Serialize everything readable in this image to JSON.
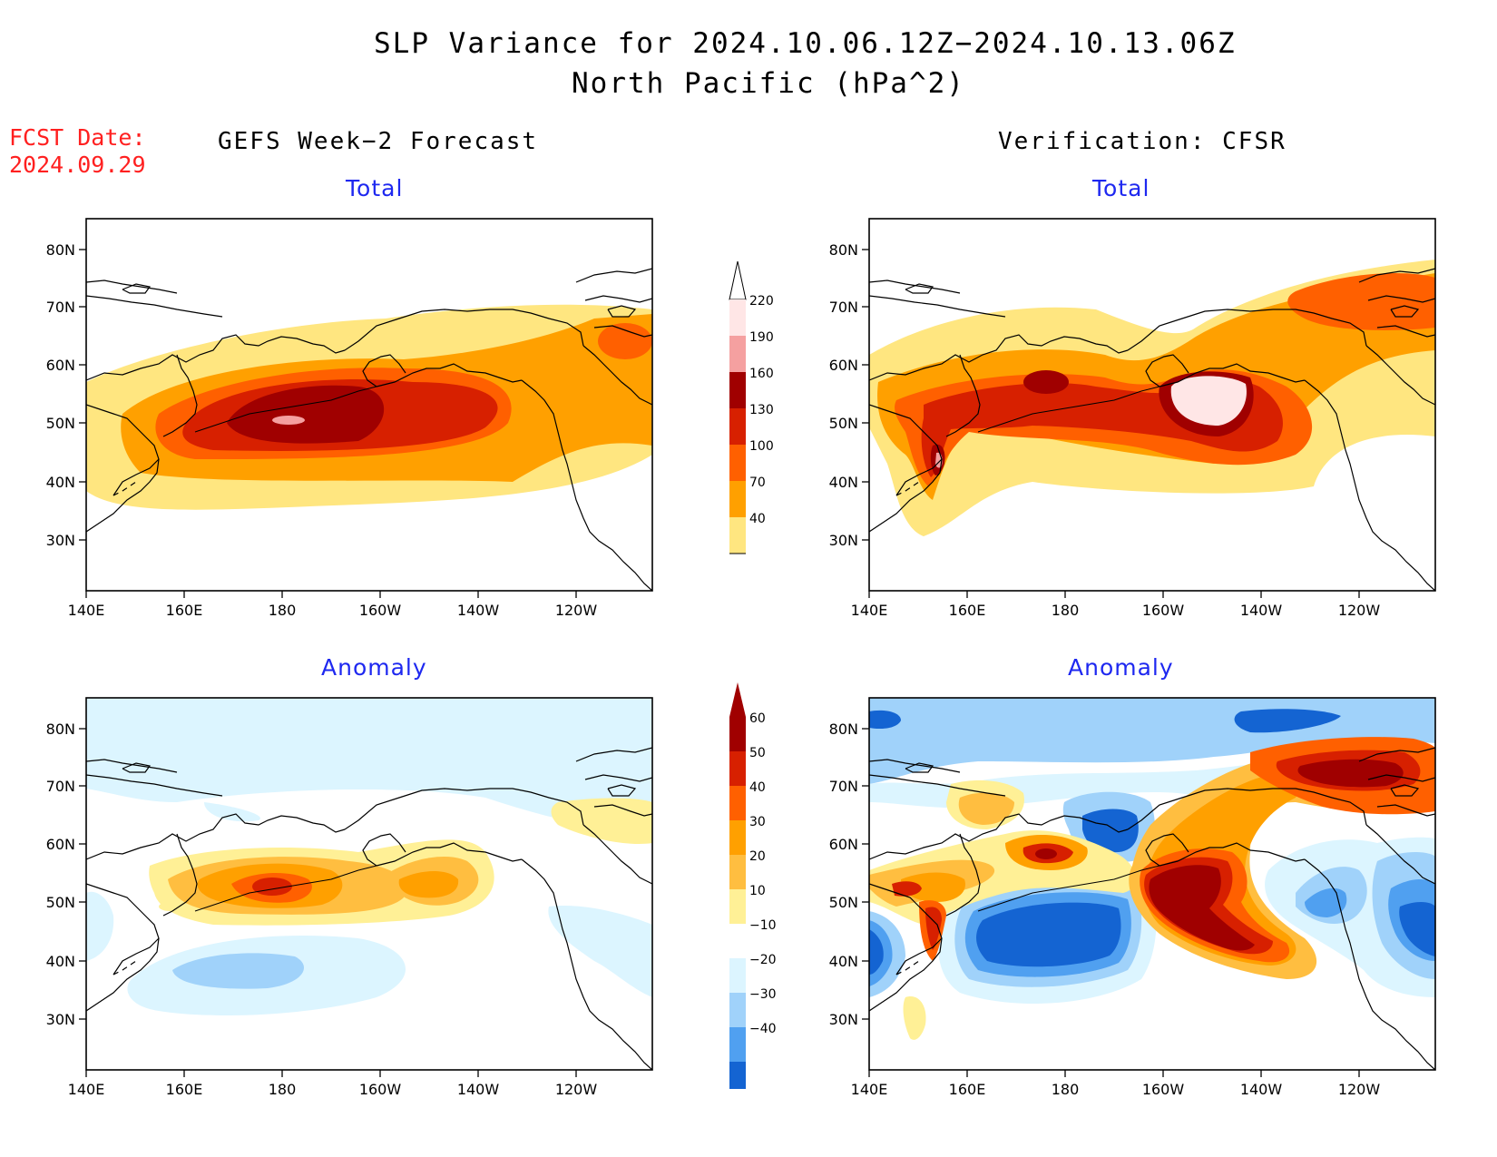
{
  "title_line1": "SLP Variance for 2024.10.06.12Z−2024.10.13.06Z",
  "title_line2": "North Pacific (hPa^2)",
  "fcst_label": "FCST Date:",
  "fcst_date": "2024.09.29",
  "col_left": "GEFS Week−2 Forecast",
  "col_right": "Verification: CFSR",
  "panels": {
    "tl": "Total",
    "tr": "Total",
    "bl": "Anomaly",
    "br": "Anomaly"
  },
  "lat_labels": [
    "80N",
    "70N",
    "60N",
    "50N",
    "40N",
    "30N"
  ],
  "lon_labels": [
    "140E",
    "160E",
    "180",
    "160W",
    "140W",
    "120W"
  ],
  "total_scale": {
    "labels": [
      "220",
      "190",
      "160",
      "130",
      "100",
      "70",
      "40"
    ],
    "colors": [
      "#ffe6e6",
      "#f5a0a0",
      "#a00000",
      "#d72000",
      "#ff6000",
      "#ffa000",
      "#ffe680"
    ]
  },
  "anom_scale": {
    "labels": [
      "60",
      "50",
      "40",
      "30",
      "20",
      "10",
      "−10",
      "−20",
      "−30",
      "−40"
    ],
    "colors": [
      "#a00000",
      "#d72000",
      "#ff6000",
      "#ffa000",
      "#ffbe40",
      "#fff096",
      "#ffffff",
      "#dcf5ff",
      "#a0d2fa",
      "#50a0f0",
      "#1464d2"
    ]
  },
  "chart_data": {
    "type": "heatmap",
    "title": "SLP Variance for 2024.10.06.12Z−2024.10.13.06Z",
    "subtitle": "North Pacific (hPa^2)",
    "x_ticks": [
      "140E",
      "160E",
      "180",
      "160W",
      "140W",
      "120W"
    ],
    "y_ticks": [
      "80N",
      "70N",
      "60N",
      "50N",
      "40N",
      "30N"
    ],
    "total_levels": [
      40,
      70,
      100,
      130,
      160,
      190,
      220
    ],
    "anomaly_levels": [
      -40,
      -30,
      -20,
      -10,
      10,
      20,
      30,
      40,
      50,
      60
    ]
  }
}
